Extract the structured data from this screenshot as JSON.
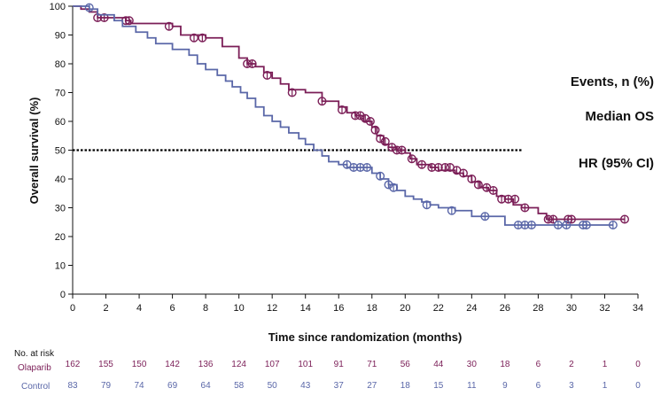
{
  "chart_data": {
    "type": "line",
    "subtype": "kaplan-meier",
    "xlabel": "Time since randomization (months)",
    "ylabel": "Overall survival (%)",
    "xlim": [
      0,
      34
    ],
    "ylim": [
      0,
      100
    ],
    "x_ticks": [
      "0",
      "2",
      "4",
      "6",
      "8",
      "10",
      "12",
      "14",
      "16",
      "18",
      "20",
      "22",
      "24",
      "26",
      "28",
      "30",
      "32",
      "34"
    ],
    "y_ticks": [
      "0",
      "10",
      "20",
      "30",
      "40",
      "50",
      "60",
      "70",
      "80",
      "90",
      "100"
    ],
    "reference_line": {
      "y": 50,
      "x_end": 27,
      "style": "dotted"
    },
    "annotations": [
      "Events, n (%)",
      "Median OS",
      "HR (95% CI)"
    ],
    "colors": {
      "olaparib": "#7b1e57",
      "control": "#5a67a8",
      "reference": "#000000"
    },
    "series": [
      {
        "name": "Olaparib",
        "color": "#7b1e57",
        "points": [
          [
            0,
            100
          ],
          [
            0.5,
            99
          ],
          [
            1,
            98
          ],
          [
            1.5,
            96
          ],
          [
            3.2,
            95
          ],
          [
            3.5,
            94
          ],
          [
            6,
            93
          ],
          [
            6.5,
            90
          ],
          [
            8,
            89
          ],
          [
            9,
            86
          ],
          [
            10,
            82
          ],
          [
            10.5,
            80
          ],
          [
            11,
            79
          ],
          [
            11.5,
            77
          ],
          [
            12,
            75
          ],
          [
            12.5,
            73
          ],
          [
            13,
            71
          ],
          [
            14,
            70
          ],
          [
            15,
            67
          ],
          [
            16,
            65
          ],
          [
            16.5,
            63
          ],
          [
            17,
            62
          ],
          [
            17.5,
            60
          ],
          [
            18,
            58
          ],
          [
            18.3,
            55
          ],
          [
            18.7,
            52
          ],
          [
            19,
            51
          ],
          [
            19.5,
            50
          ],
          [
            20,
            49
          ],
          [
            20.3,
            47
          ],
          [
            20.7,
            45
          ],
          [
            21.5,
            44
          ],
          [
            22,
            43
          ],
          [
            23,
            42
          ],
          [
            23.5,
            41
          ],
          [
            24,
            39
          ],
          [
            24.5,
            37
          ],
          [
            25,
            36
          ],
          [
            25.5,
            34
          ],
          [
            26,
            33
          ],
          [
            26.5,
            31
          ],
          [
            27,
            30
          ],
          [
            28,
            28
          ],
          [
            28.5,
            26
          ],
          [
            33.2,
            26
          ]
        ],
        "censored": [
          [
            1.5,
            96
          ],
          [
            1.9,
            96
          ],
          [
            3.2,
            95
          ],
          [
            3.4,
            95
          ],
          [
            5.8,
            93
          ],
          [
            7.3,
            89
          ],
          [
            7.8,
            89
          ],
          [
            10.5,
            80
          ],
          [
            10.8,
            80
          ],
          [
            11.7,
            76
          ],
          [
            13.2,
            70
          ],
          [
            15,
            67
          ],
          [
            16.2,
            64
          ],
          [
            17,
            62
          ],
          [
            17.3,
            62
          ],
          [
            17.6,
            61
          ],
          [
            17.9,
            60
          ],
          [
            18.2,
            57
          ],
          [
            18.5,
            54
          ],
          [
            18.8,
            53
          ],
          [
            19.2,
            51
          ],
          [
            19.5,
            50
          ],
          [
            19.8,
            50
          ],
          [
            20.4,
            47
          ],
          [
            21,
            45
          ],
          [
            21.6,
            44
          ],
          [
            22,
            44
          ],
          [
            22.4,
            44
          ],
          [
            22.7,
            44
          ],
          [
            23.1,
            43
          ],
          [
            23.5,
            42
          ],
          [
            24,
            40
          ],
          [
            24.4,
            38
          ],
          [
            24.9,
            37
          ],
          [
            25.3,
            36
          ],
          [
            25.8,
            33
          ],
          [
            26.2,
            33
          ],
          [
            26.6,
            33
          ],
          [
            27.2,
            30
          ],
          [
            28.6,
            26
          ],
          [
            28.9,
            26
          ],
          [
            29.8,
            26
          ],
          [
            30,
            26
          ],
          [
            33.2,
            26
          ]
        ]
      },
      {
        "name": "Control",
        "color": "#5a67a8",
        "points": [
          [
            0,
            100
          ],
          [
            1,
            99
          ],
          [
            1.5,
            97
          ],
          [
            2.5,
            95
          ],
          [
            3,
            93
          ],
          [
            3.8,
            91
          ],
          [
            4.5,
            89
          ],
          [
            5,
            87
          ],
          [
            6,
            85
          ],
          [
            7,
            83
          ],
          [
            7.5,
            80
          ],
          [
            8,
            78
          ],
          [
            8.7,
            76
          ],
          [
            9.2,
            74
          ],
          [
            9.6,
            72
          ],
          [
            10.1,
            70
          ],
          [
            10.5,
            68
          ],
          [
            11,
            65
          ],
          [
            11.5,
            62
          ],
          [
            12,
            60
          ],
          [
            12.5,
            58
          ],
          [
            13,
            56
          ],
          [
            13.6,
            54
          ],
          [
            14,
            52
          ],
          [
            14.5,
            50
          ],
          [
            15,
            48
          ],
          [
            15.4,
            46
          ],
          [
            16,
            45
          ],
          [
            16.5,
            44
          ],
          [
            17,
            44
          ],
          [
            17.5,
            44
          ],
          [
            18,
            42
          ],
          [
            18.5,
            40
          ],
          [
            19,
            38
          ],
          [
            19.5,
            36
          ],
          [
            20,
            34
          ],
          [
            20.5,
            33
          ],
          [
            21,
            32
          ],
          [
            21.5,
            31
          ],
          [
            22,
            30
          ],
          [
            23,
            29
          ],
          [
            24,
            27
          ],
          [
            25,
            27
          ],
          [
            26,
            24
          ],
          [
            27,
            24
          ],
          [
            32.5,
            24
          ]
        ],
        "censored": [
          [
            1,
            99.5
          ],
          [
            16.5,
            45
          ],
          [
            16.9,
            44
          ],
          [
            17.3,
            44
          ],
          [
            17.7,
            44
          ],
          [
            18.5,
            41
          ],
          [
            19,
            38
          ],
          [
            19.3,
            37
          ],
          [
            21.3,
            31
          ],
          [
            22.8,
            29
          ],
          [
            24.8,
            27
          ],
          [
            26.8,
            24
          ],
          [
            27.2,
            24
          ],
          [
            27.6,
            24
          ],
          [
            29.2,
            24
          ],
          [
            29.7,
            24
          ],
          [
            30.7,
            24
          ],
          [
            30.9,
            24
          ],
          [
            32.5,
            24
          ]
        ]
      }
    ],
    "risk_table": {
      "header": "No. at risk",
      "times": [
        0,
        2,
        4,
        6,
        8,
        10,
        12,
        14,
        16,
        18,
        20,
        22,
        24,
        26,
        28,
        30,
        32,
        34
      ],
      "rows": [
        {
          "label": "Olaparib",
          "color": "#7b1e57",
          "values": [
            "162",
            "155",
            "150",
            "142",
            "136",
            "124",
            "107",
            "101",
            "91",
            "71",
            "56",
            "44",
            "30",
            "18",
            "6",
            "2",
            "1",
            "0"
          ]
        },
        {
          "label": "Control",
          "color": "#5a67a8",
          "values": [
            "83",
            "79",
            "74",
            "69",
            "64",
            "58",
            "50",
            "43",
            "37",
            "27",
            "18",
            "15",
            "11",
            "9",
            "6",
            "3",
            "1",
            "0"
          ]
        }
      ]
    }
  }
}
